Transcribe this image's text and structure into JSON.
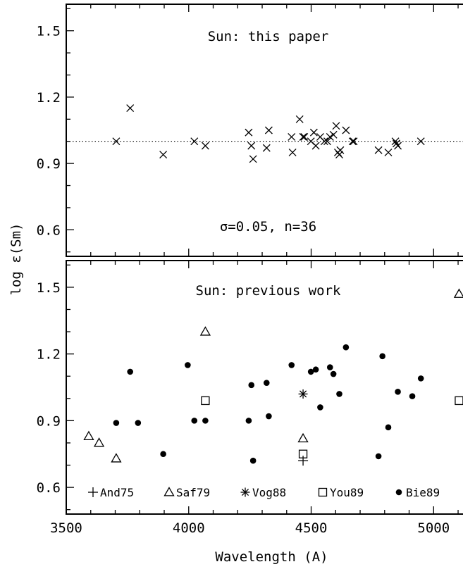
{
  "chart_data": [
    {
      "type": "scatter",
      "panel": "top",
      "title": "",
      "annotation_title": "Sun: this paper",
      "annotation_stats": "σ=0.05, n=36",
      "reference_line": 1.0,
      "xlabel": "Wavelength (A)",
      "ylabel": "log ε(Sm)",
      "xlim": [
        3500,
        5120
      ],
      "ylim": [
        0.48,
        1.62
      ],
      "yticks": [
        "0.6",
        "0.9",
        "1.2",
        "1.5"
      ],
      "series": [
        {
          "marker": "x",
          "points": [
            [
              3704,
              1.0
            ],
            [
              3761,
              1.15
            ],
            [
              3896,
              0.94
            ],
            [
              4023,
              1.0
            ],
            [
              4068,
              0.98
            ],
            [
              4245,
              1.04
            ],
            [
              4256,
              0.98
            ],
            [
              4263,
              0.92
            ],
            [
              4318,
              0.97
            ],
            [
              4327,
              1.05
            ],
            [
              4420,
              1.02
            ],
            [
              4424,
              0.95
            ],
            [
              4453,
              1.1
            ],
            [
              4467,
              1.02
            ],
            [
              4472,
              1.02
            ],
            [
              4499,
              1.0
            ],
            [
              4511,
              1.04
            ],
            [
              4519,
              0.98
            ],
            [
              4537,
              1.02
            ],
            [
              4554,
              1.0
            ],
            [
              4566,
              1.0
            ],
            [
              4577,
              1.02
            ],
            [
              4591,
              1.03
            ],
            [
              4602,
              1.07
            ],
            [
              4609,
              0.95
            ],
            [
              4615,
              0.94
            ],
            [
              4619,
              0.96
            ],
            [
              4642,
              1.05
            ],
            [
              4669,
              1.0
            ],
            [
              4674,
              1.0
            ],
            [
              4775,
              0.96
            ],
            [
              4815,
              0.95
            ],
            [
              4844,
              1.0
            ],
            [
              4848,
              0.99
            ],
            [
              4854,
              0.98
            ],
            [
              4948,
              1.0
            ]
          ]
        }
      ]
    },
    {
      "type": "scatter",
      "panel": "bottom",
      "title": "",
      "annotation_title": "Sun: previous work",
      "xlabel": "Wavelength (A)",
      "ylabel": "log ε(Sm)",
      "xlim": [
        3500,
        5120
      ],
      "ylim": [
        0.48,
        1.62
      ],
      "xticks": [
        "3500",
        "4000",
        "4500",
        "5000"
      ],
      "yticks": [
        "0.6",
        "0.9",
        "1.2",
        "1.5"
      ],
      "series": [
        {
          "name": "And75",
          "marker": "plus",
          "points": [
            [
              4467,
              0.72
            ]
          ]
        },
        {
          "name": "Saf79",
          "marker": "triangle",
          "points": [
            [
              3592,
              0.83
            ],
            [
              3634,
              0.8
            ],
            [
              3704,
              0.73
            ],
            [
              4068,
              1.3
            ],
            [
              4467,
              0.82
            ],
            [
              5104,
              1.47
            ]
          ]
        },
        {
          "name": "Vog88",
          "marker": "asterisk",
          "points": [
            [
              4467,
              1.02
            ]
          ]
        },
        {
          "name": "You89",
          "marker": "square",
          "points": [
            [
              4068,
              0.99
            ],
            [
              4467,
              0.75
            ],
            [
              5104,
              0.99
            ]
          ]
        },
        {
          "name": "Bie89",
          "marker": "filled-circle",
          "points": [
            [
              3704,
              0.89
            ],
            [
              3761,
              1.12
            ],
            [
              3793,
              0.89
            ],
            [
              3896,
              0.75
            ],
            [
              3996,
              1.15
            ],
            [
              4023,
              0.9
            ],
            [
              4068,
              0.9
            ],
            [
              4245,
              0.9
            ],
            [
              4256,
              1.06
            ],
            [
              4263,
              0.72
            ],
            [
              4318,
              1.07
            ],
            [
              4327,
              0.92
            ],
            [
              4420,
              1.15
            ],
            [
              4499,
              1.12
            ],
            [
              4519,
              1.13
            ],
            [
              4537,
              0.96
            ],
            [
              4577,
              1.14
            ],
            [
              4591,
              1.11
            ],
            [
              4615,
              1.02
            ],
            [
              4642,
              1.23
            ],
            [
              4775,
              0.74
            ],
            [
              4791,
              1.19
            ],
            [
              4815,
              0.87
            ],
            [
              4854,
              1.03
            ],
            [
              4913,
              1.01
            ],
            [
              4948,
              1.09
            ]
          ]
        }
      ]
    }
  ]
}
